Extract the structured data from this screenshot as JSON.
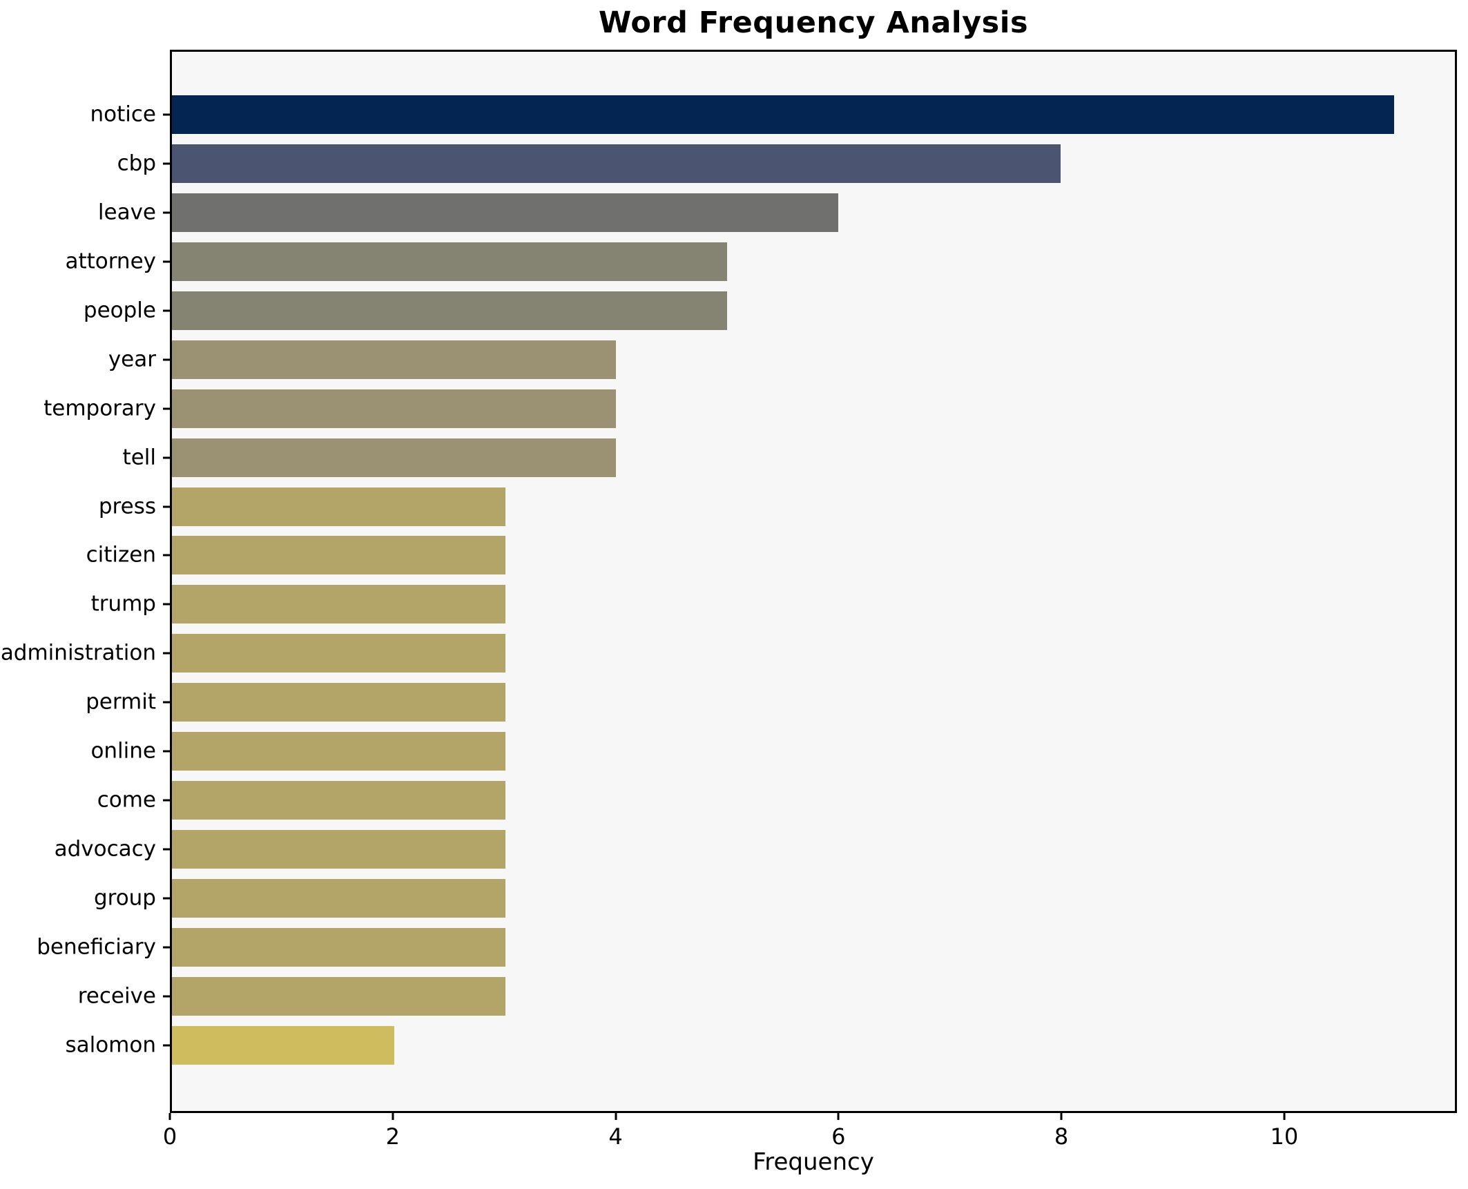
{
  "chart_data": {
    "type": "bar",
    "orientation": "horizontal",
    "title": "Word Frequency Analysis",
    "xlabel": "Frequency",
    "ylabel": "",
    "categories": [
      "notice",
      "cbp",
      "leave",
      "attorney",
      "people",
      "year",
      "temporary",
      "tell",
      "press",
      "citizen",
      "trump",
      "administration",
      "permit",
      "online",
      "come",
      "advocacy",
      "group",
      "beneficiary",
      "receive",
      "salomon"
    ],
    "values": [
      11,
      8,
      6,
      5,
      5,
      4,
      4,
      4,
      3,
      3,
      3,
      3,
      3,
      3,
      3,
      3,
      3,
      3,
      3,
      2
    ],
    "bar_colors": [
      "#042451",
      "#4b5571",
      "#70706e",
      "#858472",
      "#858472",
      "#9b9273",
      "#9b9273",
      "#9b9273",
      "#b2a567",
      "#b2a567",
      "#b2a567",
      "#b2a567",
      "#b2a567",
      "#b2a567",
      "#b2a567",
      "#b2a567",
      "#b2a567",
      "#b2a567",
      "#b2a567",
      "#cfbc5f"
    ],
    "xlim": [
      0,
      11.55
    ],
    "xticks": [
      0,
      2,
      4,
      6,
      8,
      10
    ],
    "grid": false,
    "legend": null,
    "plot_bg": "#f7f7f7",
    "figure_bg": "#ffffff",
    "spine_color": "#000000"
  }
}
